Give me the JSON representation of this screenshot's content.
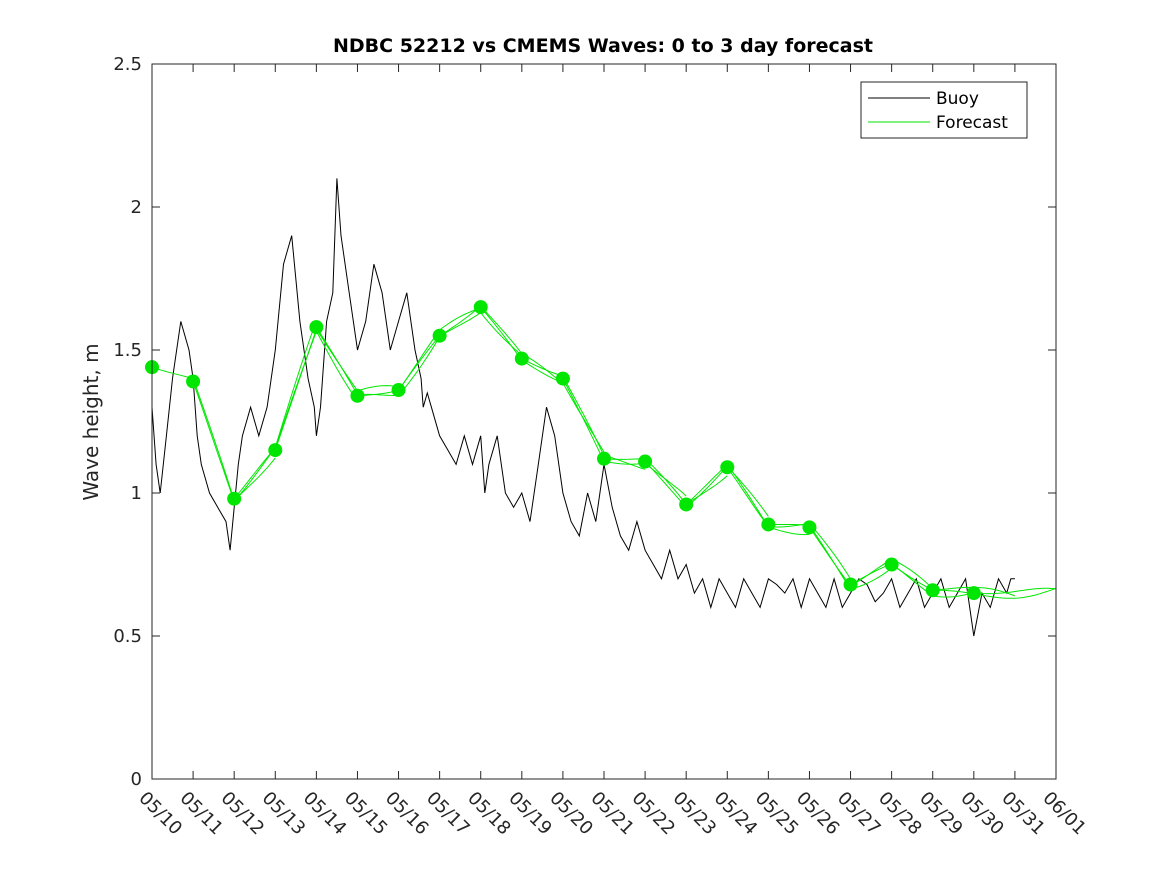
{
  "chart_data": {
    "type": "line",
    "title": "NDBC 52212 vs CMEMS Waves: 0 to 3 day forecast",
    "xlabel": "",
    "ylabel": "Wave height, m",
    "xlim": [
      "05/10",
      "06/01"
    ],
    "ylim": [
      0,
      2.5
    ],
    "x_tick_labels": [
      "05/10",
      "05/11",
      "05/12",
      "05/13",
      "05/14",
      "05/15",
      "05/16",
      "05/17",
      "05/18",
      "05/19",
      "05/20",
      "05/21",
      "05/22",
      "05/23",
      "05/24",
      "05/25",
      "05/26",
      "05/27",
      "05/28",
      "05/29",
      "05/30",
      "05/31",
      "06/01"
    ],
    "y_ticks": [
      0,
      0.5,
      1,
      1.5,
      2,
      2.5
    ],
    "y_tick_labels": [
      "0",
      "0.5",
      "1",
      "1.5",
      "2",
      "2.5"
    ],
    "grid": false,
    "legend": {
      "placement": "top-right",
      "entries": [
        "Buoy",
        "Forecast"
      ]
    },
    "colors": {
      "buoy": "#000000",
      "forecast": "#00e600",
      "axes": "#262626"
    },
    "series": [
      {
        "name": "Buoy",
        "x_day": [
          0,
          0.1,
          0.2,
          0.35,
          0.5,
          0.7,
          0.9,
          1.0,
          1.1,
          1.2,
          1.4,
          1.6,
          1.8,
          1.9,
          2.0,
          2.1,
          2.2,
          2.4,
          2.6,
          2.8,
          3.0,
          3.2,
          3.4,
          3.6,
          3.8,
          3.95,
          4.0,
          4.1,
          4.25,
          4.4,
          4.5,
          4.6,
          4.8,
          5.0,
          5.2,
          5.4,
          5.6,
          5.8,
          6.0,
          6.2,
          6.4,
          6.55,
          6.6,
          6.7,
          6.8,
          7.0,
          7.2,
          7.4,
          7.6,
          7.8,
          8.0,
          8.1,
          8.2,
          8.4,
          8.6,
          8.8,
          9.0,
          9.2,
          9.4,
          9.6,
          9.8,
          10.0,
          10.2,
          10.4,
          10.6,
          10.8,
          11.0,
          11.2,
          11.4,
          11.6,
          11.8,
          12.0,
          12.2,
          12.4,
          12.6,
          12.8,
          13.0,
          13.2,
          13.4,
          13.6,
          13.8,
          14.0,
          14.2,
          14.4,
          14.6,
          14.8,
          15.0,
          15.2,
          15.4,
          15.6,
          15.8,
          16.0,
          16.2,
          16.4,
          16.6,
          16.8,
          17.0,
          17.2,
          17.4,
          17.6,
          17.8,
          18.0,
          18.2,
          18.4,
          18.6,
          18.8,
          19.0,
          19.2,
          19.4,
          19.6,
          19.8,
          20.0,
          20.2,
          20.4,
          20.6,
          20.8,
          20.9,
          21.0
        ],
        "values": [
          1.3,
          1.1,
          1.0,
          1.2,
          1.4,
          1.6,
          1.5,
          1.4,
          1.2,
          1.1,
          1.0,
          0.95,
          0.9,
          0.8,
          0.95,
          1.1,
          1.2,
          1.3,
          1.2,
          1.3,
          1.5,
          1.8,
          1.9,
          1.6,
          1.4,
          1.3,
          1.2,
          1.3,
          1.6,
          1.7,
          2.1,
          1.9,
          1.7,
          1.5,
          1.6,
          1.8,
          1.7,
          1.5,
          1.6,
          1.7,
          1.5,
          1.4,
          1.3,
          1.35,
          1.3,
          1.2,
          1.15,
          1.1,
          1.2,
          1.1,
          1.2,
          1.0,
          1.1,
          1.2,
          1.0,
          0.95,
          1.0,
          0.9,
          1.1,
          1.3,
          1.2,
          1.0,
          0.9,
          0.85,
          1.0,
          0.9,
          1.1,
          0.95,
          0.85,
          0.8,
          0.9,
          0.8,
          0.75,
          0.7,
          0.8,
          0.7,
          0.75,
          0.65,
          0.7,
          0.6,
          0.7,
          0.65,
          0.6,
          0.7,
          0.65,
          0.6,
          0.7,
          0.68,
          0.65,
          0.7,
          0.6,
          0.7,
          0.65,
          0.6,
          0.7,
          0.6,
          0.65,
          0.7,
          0.68,
          0.62,
          0.65,
          0.7,
          0.6,
          0.65,
          0.7,
          0.6,
          0.65,
          0.7,
          0.6,
          0.65,
          0.7,
          0.5,
          0.65,
          0.6,
          0.7,
          0.65,
          0.7,
          0.7
        ]
      },
      {
        "name": "Forecast",
        "marker_days": [
          0,
          1,
          2,
          3,
          4,
          5,
          6,
          7,
          8,
          9,
          10,
          11,
          12,
          13,
          14,
          15,
          16,
          17,
          18,
          19,
          20
        ],
        "marker_values": [
          1.44,
          1.39,
          0.98,
          1.15,
          1.58,
          1.34,
          1.36,
          1.55,
          1.65,
          1.47,
          1.4,
          1.12,
          1.11,
          0.96,
          1.09,
          0.89,
          0.88,
          0.68,
          0.75,
          0.66,
          0.65
        ]
      }
    ]
  }
}
